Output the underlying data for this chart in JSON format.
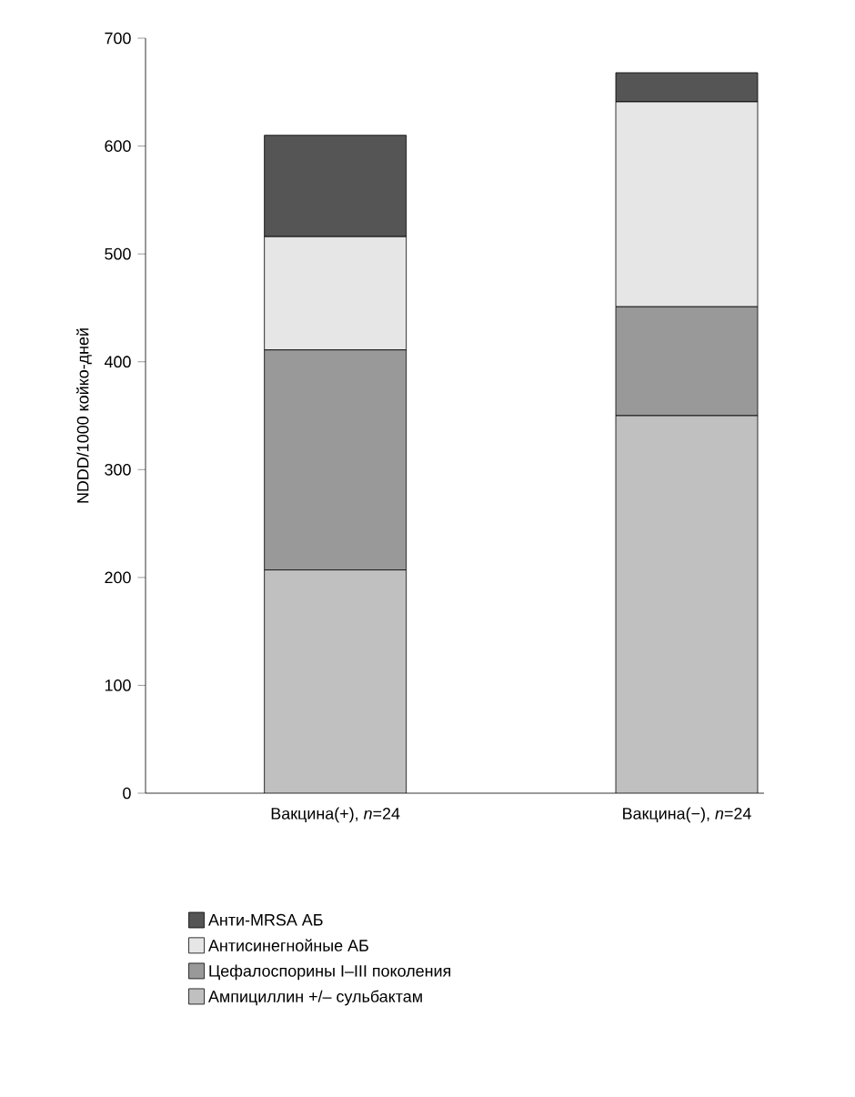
{
  "chart_data": {
    "type": "bar",
    "stacked": true,
    "ylabel": "NDDD/1000 койко-дней",
    "categories": [
      "Вакцина(+), *n*=24",
      "Вакцина(−), *n*=24"
    ],
    "series": [
      {
        "name": "Ампициллин +/– сульбактам",
        "color": "#c0c0c0",
        "values": [
          207,
          350
        ]
      },
      {
        "name": "Цефалоспорины I–III поколения",
        "color": "#999999",
        "values": [
          204,
          101
        ]
      },
      {
        "name": "Антисинегнойные АБ",
        "color": "#e6e6e6",
        "values": [
          105,
          190
        ]
      },
      {
        "name": "Анти-MRSA АБ",
        "color": "#555555",
        "values": [
          94,
          27
        ]
      }
    ],
    "ylim": [
      0,
      700
    ],
    "yticks": [
      0,
      100,
      200,
      300,
      400,
      500,
      600,
      700
    ],
    "legend": "bottom",
    "grid": false
  }
}
